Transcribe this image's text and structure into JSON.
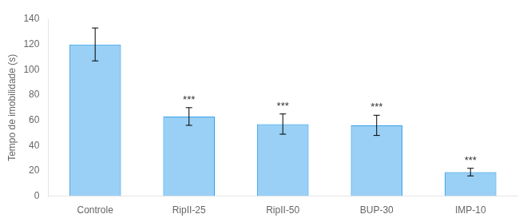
{
  "chart_data": {
    "type": "bar",
    "categories": [
      "Controle",
      "RipII-25",
      "RipII-50",
      "BUP-30",
      "IMP-10"
    ],
    "values": [
      120,
      63,
      57,
      56,
      19
    ],
    "errors": [
      13,
      7,
      8,
      8,
      3
    ],
    "annotations": [
      {
        "category": "RipII-25",
        "text": "***"
      },
      {
        "category": "RipII-50",
        "text": "***"
      },
      {
        "category": "BUP-30",
        "text": "***"
      },
      {
        "category": "IMP-10",
        "text": "***"
      }
    ],
    "ylabel": "Tempo de imobilidade (s)",
    "ylim": [
      0,
      140
    ],
    "yticks": [
      0,
      20,
      40,
      60,
      80,
      100,
      120,
      140
    ],
    "grid": false
  }
}
